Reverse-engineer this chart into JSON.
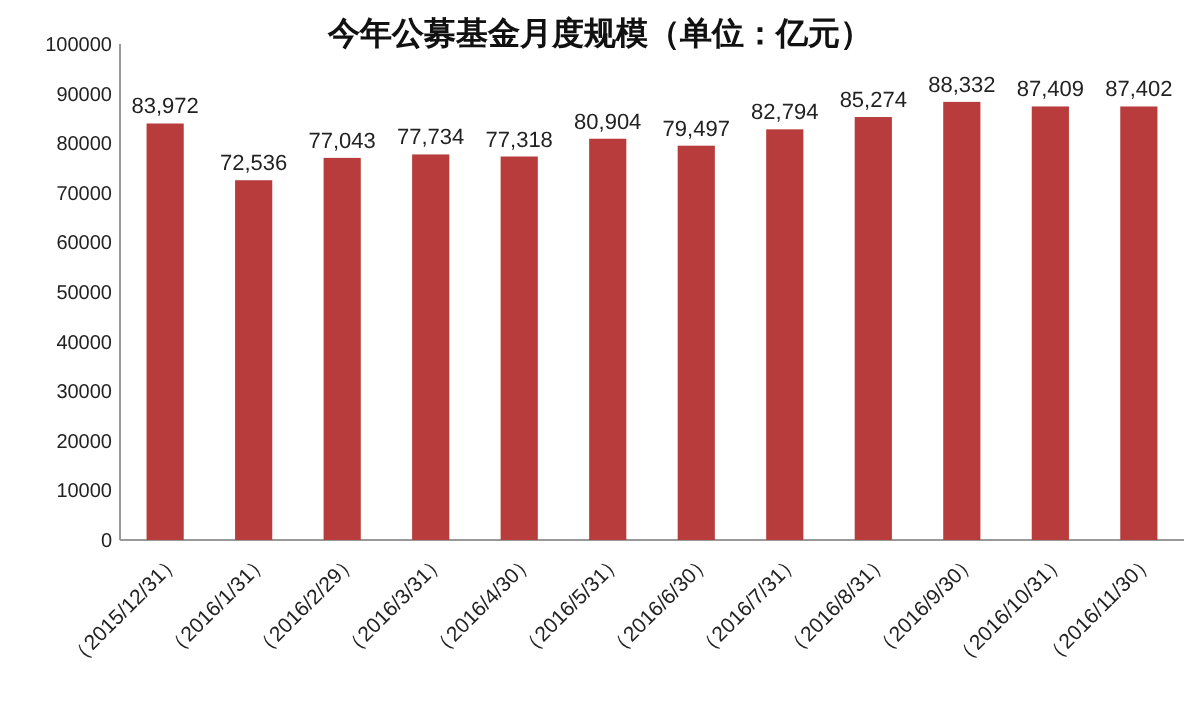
{
  "chart_data": {
    "type": "bar",
    "title": "今年公募基金月度规模（单位：亿元）",
    "categories": [
      "（2015/12/31）",
      "（2016/1/31）",
      "（2016/2/29）",
      "（2016/3/31）",
      "（2016/4/30）",
      "（2016/5/31）",
      "（2016/6/30）",
      "（2016/7/31）",
      "（2016/8/31）",
      "（2016/9/30）",
      "（2016/10/31）",
      "（2016/11/30）"
    ],
    "values": [
      83972,
      72536,
      77043,
      77734,
      77318,
      80904,
      79497,
      82794,
      85274,
      88332,
      87409,
      87402
    ],
    "value_labels": [
      "83,972",
      "72,536",
      "77,043",
      "77,734",
      "77,318",
      "80,904",
      "79,497",
      "82,794",
      "85,274",
      "88,332",
      "87,409",
      "87,402"
    ],
    "color": "#b83c3c",
    "ylim": [
      0,
      100000
    ],
    "yticks": [
      0,
      10000,
      20000,
      30000,
      40000,
      50000,
      60000,
      70000,
      80000,
      90000,
      100000
    ],
    "grid": false
  }
}
